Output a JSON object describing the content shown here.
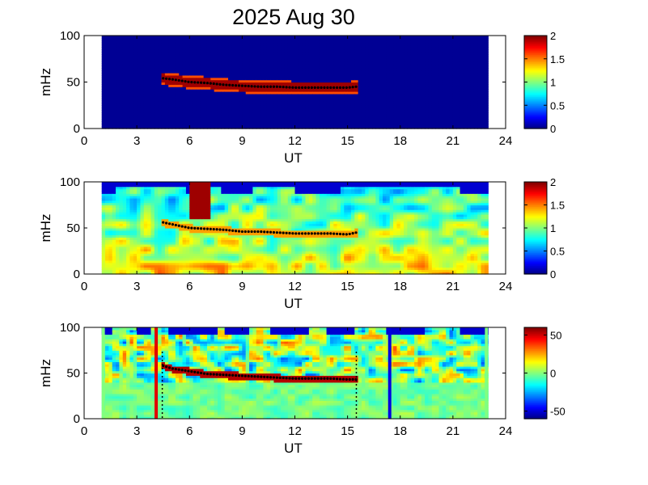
{
  "figure": {
    "title": "2025 Aug 30"
  },
  "colors": {
    "background_high": "#00007f",
    "background_low": "#0000a8",
    "ridge_main": "#7f0000",
    "ridge_trace": "#000000",
    "marker_start": "#e00000",
    "marker_end": "#0000e0",
    "data_gap": "#ffffff",
    "data_gap_edge_bottom": "#80ff80"
  },
  "chart_data": [
    {
      "type": "heatmap",
      "panel": "top",
      "xlabel": "UT",
      "ylabel": "mHz",
      "xlim": [
        0,
        24
      ],
      "ylim": [
        0,
        100
      ],
      "xticks": [
        "0",
        "3",
        "6",
        "9",
        "12",
        "15",
        "18",
        "21",
        "24"
      ],
      "yticks": [
        "0",
        "50",
        "100"
      ],
      "data_window": [
        1.0,
        23.0
      ],
      "colorbar": {
        "min": 0,
        "max": 2,
        "ticks": [
          "0",
          "0.5",
          "1",
          "1.5",
          "2"
        ],
        "colormap": "jet"
      },
      "ridge": {
        "x": [
          4.5,
          5.0,
          6.0,
          7.0,
          8.0,
          9.0,
          10.0,
          11.0,
          12.0,
          13.0,
          14.0,
          15.0,
          15.5
        ],
        "y": [
          54,
          53,
          50,
          49,
          47,
          46,
          45,
          45,
          44,
          44,
          44,
          44,
          45
        ]
      }
    },
    {
      "type": "heatmap",
      "panel": "middle",
      "xlabel": "UT",
      "ylabel": "mHz",
      "xlim": [
        0,
        24
      ],
      "ylim": [
        0,
        100
      ],
      "xticks": [
        "0",
        "3",
        "6",
        "9",
        "12",
        "15",
        "18",
        "21",
        "24"
      ],
      "yticks": [
        "0",
        "50",
        "100"
      ],
      "data_window": [
        1.0,
        23.0
      ],
      "colorbar": {
        "min": 0,
        "max": 2,
        "ticks": [
          "0",
          "0.5",
          "1",
          "1.5",
          "2"
        ],
        "colormap": "jet"
      },
      "ridge": {
        "x": [
          4.5,
          5.0,
          6.0,
          7.0,
          8.0,
          9.0,
          10.0,
          11.0,
          12.0,
          13.0,
          14.0,
          15.0,
          15.5
        ],
        "y": [
          56,
          54,
          50,
          49,
          48,
          46,
          46,
          45,
          44,
          44,
          44,
          43,
          45
        ]
      },
      "hot_patch": {
        "x": [
          6.0,
          7.2
        ],
        "y": [
          60,
          100
        ]
      }
    },
    {
      "type": "heatmap",
      "panel": "bottom",
      "xlabel": "UT",
      "ylabel": "mHz",
      "xlim": [
        0,
        24
      ],
      "ylim": [
        0,
        100
      ],
      "xticks": [
        "0",
        "3",
        "6",
        "9",
        "12",
        "15",
        "18",
        "21",
        "24"
      ],
      "yticks": [
        "0",
        "50",
        "100"
      ],
      "data_window": [
        1.0,
        23.0
      ],
      "colorbar": {
        "min": -60,
        "max": 60,
        "ticks": [
          "-50",
          "0",
          "50"
        ],
        "colormap": "jet"
      },
      "ridge": {
        "x": [
          4.5,
          5.0,
          6.0,
          7.0,
          8.0,
          9.0,
          10.0,
          11.0,
          12.0,
          13.0,
          14.0,
          15.0,
          15.5
        ],
        "y": [
          58,
          55,
          52,
          49,
          48,
          47,
          46,
          45,
          44,
          44,
          44,
          43,
          43
        ]
      },
      "vertical_markers": [
        {
          "x": 4.1,
          "color": "#e00000"
        },
        {
          "x": 17.4,
          "color": "#0000e0"
        }
      ],
      "dotted_markers": [
        4.45,
        15.5
      ]
    }
  ]
}
